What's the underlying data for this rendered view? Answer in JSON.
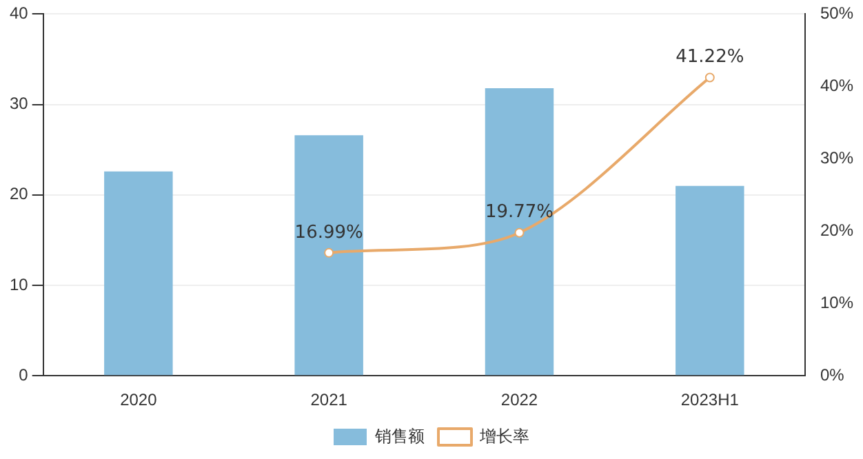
{
  "chart_data": {
    "type": "bar",
    "categories": [
      "2020",
      "2021",
      "2022",
      "2023H1"
    ],
    "series": [
      {
        "name": "销售额",
        "color": "#86bcdc",
        "values": [
          22.6,
          26.6,
          31.8,
          21.0
        ]
      },
      {
        "name": "增长率",
        "type": "line",
        "axis": "y2",
        "color": "#e8a96a",
        "values": [
          null,
          16.99,
          19.77,
          41.22
        ],
        "value_labels": [
          null,
          "16.99%",
          "19.77%",
          "41.22%"
        ]
      }
    ],
    "ylim": [
      0,
      40
    ],
    "yticks": [
      0,
      10,
      20,
      30,
      40
    ],
    "y2lim": [
      0,
      50
    ],
    "y2ticks": [
      {
        "value": 0,
        "label": "0%"
      },
      {
        "value": 10,
        "label": "10%"
      },
      {
        "value": 20,
        "label": "20%"
      },
      {
        "value": 30,
        "label": "30%"
      },
      {
        "value": 40,
        "label": "40%"
      },
      {
        "value": 50,
        "label": "50%"
      }
    ],
    "grid": "y",
    "legend": "bottom",
    "marker": "circle"
  }
}
